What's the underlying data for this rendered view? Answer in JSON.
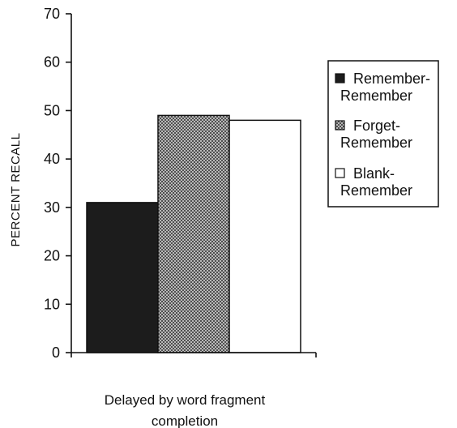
{
  "chart_data": {
    "type": "bar",
    "title": "",
    "ylabel": "PERCENT RECALL",
    "xlabel": [
      "Delayed by word fragment",
      "completion"
    ],
    "categories": [
      "Delayed by word fragment completion"
    ],
    "ylim": [
      0,
      70
    ],
    "yticks": [
      0,
      10,
      20,
      30,
      40,
      50,
      60,
      70
    ],
    "grid": false,
    "legend_position": "right",
    "series": [
      {
        "name": "Remember-Remember",
        "legend_lines": [
          "Remember-",
          "Remember"
        ],
        "values": [
          31
        ],
        "fill": "solid-dark",
        "color": "#1c1c1c"
      },
      {
        "name": "Forget-Remember",
        "legend_lines": [
          "Forget-",
          "Remember"
        ],
        "values": [
          49
        ],
        "fill": "crosshatch",
        "color": "#7a7a7a"
      },
      {
        "name": "Blank-Remember",
        "legend_lines": [
          "Blank-",
          "Remember"
        ],
        "values": [
          48
        ],
        "fill": "white",
        "color": "#ffffff"
      }
    ]
  }
}
